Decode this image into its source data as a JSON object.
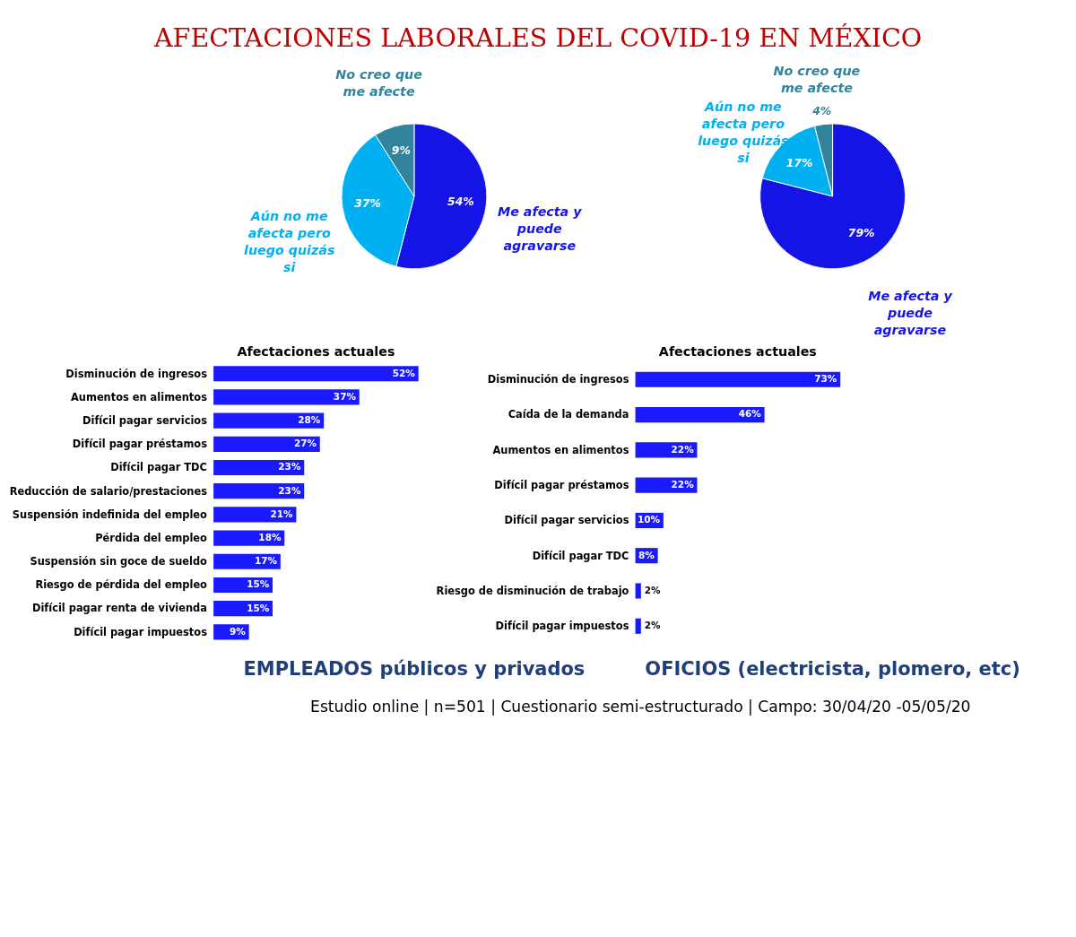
{
  "chart_data": [
    {
      "type": "pie",
      "title": "AFECTACIONES LABORALES DEL COVID-19 EN MÉXICO",
      "categories": [
        "Me afecta y puede agravarse",
        "Aún no me afecta pero luego quizás si",
        "No creo que me afecte"
      ],
      "values": [
        54,
        37,
        9
      ],
      "colors": [
        "#1414e6",
        "#00b0f0",
        "#31849b"
      ],
      "value_labels": [
        "54%",
        "37%",
        "9%"
      ]
    },
    {
      "type": "pie",
      "categories": [
        "Me afecta y puede agravarse",
        "Aún no me afecta pero luego quizás si",
        "No creo que me afecte"
      ],
      "values": [
        79,
        17,
        4
      ],
      "colors": [
        "#1414e6",
        "#00b0f0",
        "#31849b"
      ],
      "value_labels": [
        "79%",
        "17%",
        "4%"
      ]
    },
    {
      "type": "bar",
      "orientation": "horizontal",
      "title": "Afectaciones actuales",
      "categories": [
        "Disminución de ingresos",
        "Aumentos en alimentos",
        "Difícil pagar servicios",
        "Difícil pagar préstamos",
        "Difícil pagar TDC",
        "Reducción de salario/prestaciones",
        "Suspensión indefinida del empleo",
        "Pérdida del empleo",
        "Suspensión sin goce de sueldo",
        "Riesgo de pérdida del empleo",
        "Difícil pagar renta de vivienda",
        "Difícil pagar impuestos"
      ],
      "values": [
        52,
        37,
        28,
        27,
        23,
        23,
        21,
        18,
        17,
        15,
        15,
        9
      ],
      "color": "#1a1aff",
      "value_labels": [
        "52%",
        "37%",
        "28%",
        "27%",
        "23%",
        "23%",
        "21%",
        "18%",
        "17%",
        "15%",
        "15%",
        "9%"
      ],
      "annotations": [
        "EMPLEADOS públicos y privados"
      ]
    },
    {
      "type": "bar",
      "orientation": "horizontal",
      "title": "Afectaciones actuales",
      "categories": [
        "Disminución de ingresos",
        "Caída de la demanda",
        "Aumentos en alimentos",
        "Difícil pagar préstamos",
        "Difícil pagar servicios",
        "Difícil pagar TDC",
        "Riesgo de disminución de trabajo",
        "Difícil pagar impuestos"
      ],
      "values": [
        73,
        46,
        22,
        22,
        10,
        8,
        2,
        2
      ],
      "color": "#1a1aff",
      "value_labels": [
        "73%",
        "46%",
        "22%",
        "22%",
        "10%",
        "8%",
        "2%",
        "2%"
      ],
      "annotations": [
        "OFICIOS (electricista, plomero, etc)",
        "Estudio online | n=501 | Cuestionario semi-estructurado | Campo: 30/04/20 -05/05/20"
      ]
    }
  ]
}
